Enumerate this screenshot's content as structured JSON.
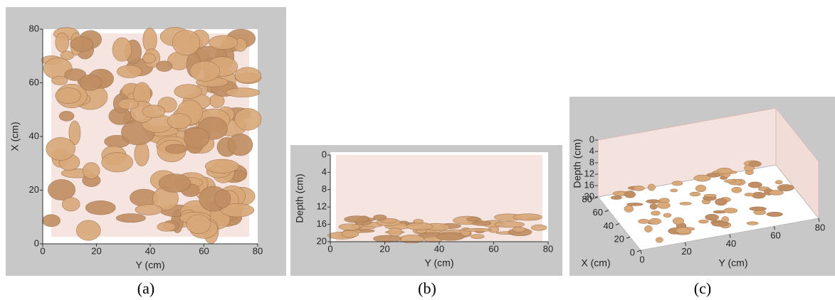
{
  "chart_data": [
    {
      "type": "isosurface",
      "caption": "(a)",
      "xlabel": "Y (cm)",
      "ylabel": "X (cm)",
      "xlim": [
        0,
        80
      ],
      "xticks": [
        0,
        20,
        40,
        60,
        80
      ],
      "ylim": [
        0,
        80
      ],
      "yticks": [
        0,
        20,
        40,
        60,
        80
      ]
    },
    {
      "type": "isosurface",
      "caption": "(b)",
      "xlabel": "Y (cm)",
      "ylabel": "Depth (cm)",
      "xlim": [
        0,
        80
      ],
      "xticks": [
        0,
        20,
        40,
        60,
        80
      ],
      "ylim": [
        20,
        0
      ],
      "yticks": [
        0,
        4,
        8,
        12,
        16,
        20
      ]
    },
    {
      "type": "isosurface3d",
      "caption": "(c)",
      "xlabel": "X (cm)",
      "ylabel": "Y (cm)",
      "zlabel": "Depth (cm)",
      "xlim": [
        0,
        80
      ],
      "xticks": [
        0,
        20,
        40,
        60,
        80
      ],
      "ylim": [
        0,
        80
      ],
      "yticks": [
        0,
        20,
        40,
        60,
        80
      ],
      "zlim": [
        20,
        0
      ],
      "zticks": [
        0,
        4,
        8,
        12,
        16,
        20
      ]
    }
  ]
}
